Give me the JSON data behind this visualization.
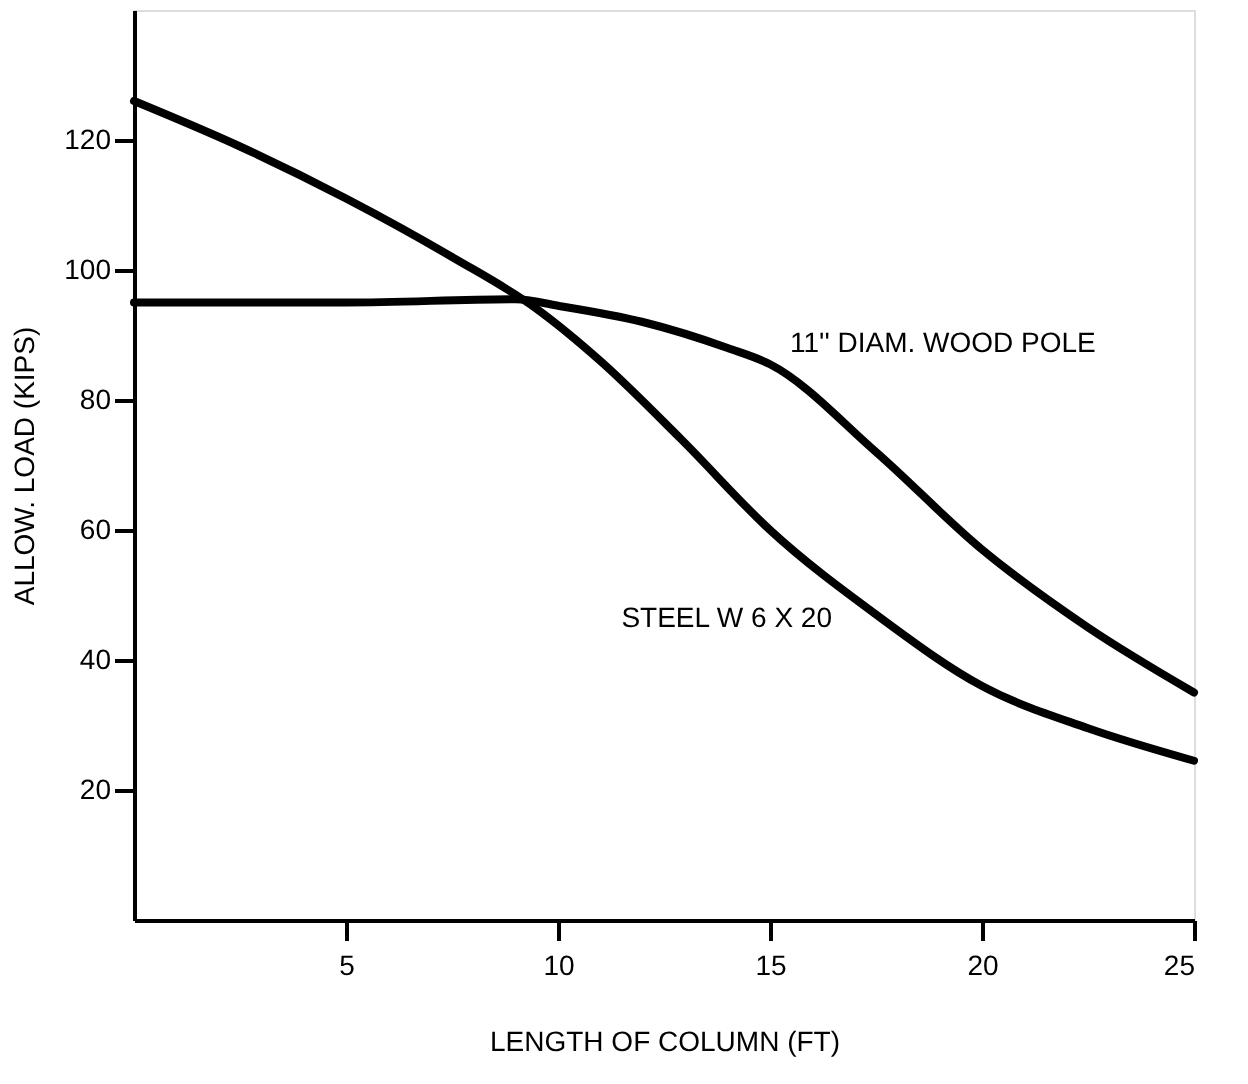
{
  "chart_data": {
    "type": "line",
    "xlabel": "LENGTH OF COLUMN (FT)",
    "ylabel": "ALLOW. LOAD (KIPS)",
    "xlim": [
      0,
      25
    ],
    "xticks": [
      5,
      10,
      15,
      20,
      25
    ],
    "ylim": [
      0,
      140
    ],
    "yticks": [
      20,
      40,
      60,
      80,
      100,
      120
    ],
    "grid": false,
    "legend": false,
    "marker": "none",
    "line_style": "solid",
    "series": [
      {
        "name": "STEEL W 6 X 20",
        "color": "#000000",
        "x": [
          0,
          2.5,
          5,
          7.5,
          9.5,
          11,
          12.9,
          15,
          17.5,
          20,
          22.5,
          25
        ],
        "values": [
          126,
          119,
          111,
          102,
          94,
          86,
          74,
          60,
          47,
          36,
          29.5,
          24.5
        ]
      },
      {
        "name": "11'' DIAM. WOOD POLE",
        "color": "#000000",
        "x": [
          0,
          5,
          9,
          10,
          12,
          14,
          15,
          17.5,
          20,
          22.5,
          25
        ],
        "values": [
          95,
          95,
          95.5,
          94.5,
          92,
          88,
          85.5,
          72,
          57,
          45,
          35
        ]
      }
    ]
  }
}
